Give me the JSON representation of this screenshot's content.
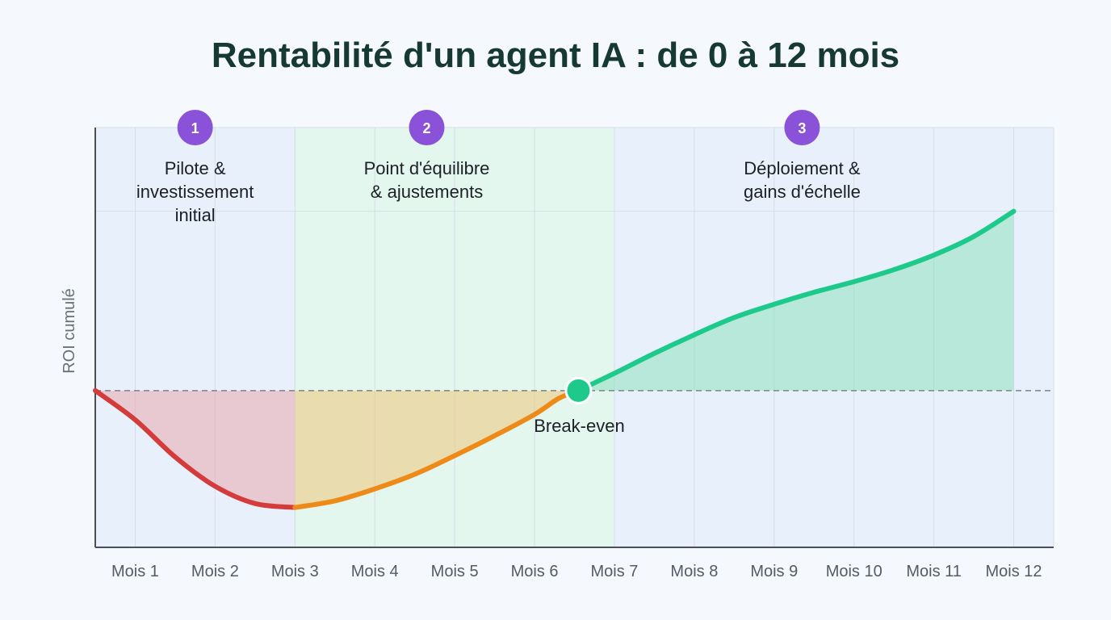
{
  "chart_data": {
    "type": "line",
    "title": "Rentabilité d'un agent IA : de 0 à 12 mois",
    "ylabel": "ROI cumulé",
    "xlabel": "",
    "categories": [
      "Mois 1",
      "Mois 2",
      "Mois 3",
      "Mois 4",
      "Mois 5",
      "Mois 6",
      "Mois 7",
      "Mois 8",
      "Mois 9",
      "Mois 10",
      "Mois 11",
      "Mois 12"
    ],
    "series": [
      {
        "points": [
          {
            "x": 0.5,
            "y": 0
          },
          {
            "x": 1.0,
            "y": -22
          },
          {
            "x": 1.5,
            "y": -50
          },
          {
            "x": 2.0,
            "y": -72
          },
          {
            "x": 2.5,
            "y": -85
          },
          {
            "x": 3.0,
            "y": -88
          },
          {
            "x": 3.5,
            "y": -83
          },
          {
            "x": 4.0,
            "y": -74
          },
          {
            "x": 4.5,
            "y": -63
          },
          {
            "x": 5.0,
            "y": -49
          },
          {
            "x": 5.5,
            "y": -34
          },
          {
            "x": 6.0,
            "y": -18
          },
          {
            "x": 6.3,
            "y": -6
          },
          {
            "x": 6.55,
            "y": 0
          },
          {
            "x": 7.0,
            "y": 13
          },
          {
            "x": 7.5,
            "y": 28
          },
          {
            "x": 8.0,
            "y": 42
          },
          {
            "x": 8.5,
            "y": 55
          },
          {
            "x": 9.0,
            "y": 65
          },
          {
            "x": 9.5,
            "y": 74
          },
          {
            "x": 10.0,
            "y": 82
          },
          {
            "x": 10.5,
            "y": 91
          },
          {
            "x": 11.0,
            "y": 102
          },
          {
            "x": 11.5,
            "y": 116
          },
          {
            "x": 12.0,
            "y": 135
          }
        ]
      }
    ],
    "xlim": [
      0.5,
      12.5
    ],
    "ylim": [
      -118,
      198
    ],
    "baseline": 0,
    "phases": [
      {
        "number": "1",
        "title_lines": [
          "Pilote &",
          "investissement",
          "initial"
        ],
        "x_start": 0.5,
        "x_end": 3.0,
        "color": "#e8f1fb",
        "line_color": "#d43b3b",
        "fill_color": "#e8a8b0"
      },
      {
        "number": "2",
        "title_lines": [
          "Point d'équilibre",
          "& ajustements"
        ],
        "x_start": 3.0,
        "x_end": 7.0,
        "color": "#e3f7ef",
        "line_color": "#ee8a18",
        "fill_color": "#efc67a"
      },
      {
        "number": "3",
        "title_lines": [
          "Déploiement &",
          "gains d'échelle"
        ],
        "x_start": 7.0,
        "x_end": 12.5,
        "color": "#e8f1fb",
        "line_color": "#1dc98b",
        "fill_color": "#8ee0c0"
      }
    ],
    "break_even": {
      "x": 6.55,
      "y": 0,
      "label": "Break-even",
      "color": "#1dc98b"
    },
    "badge_color": "#8a52d8",
    "grid": true
  }
}
